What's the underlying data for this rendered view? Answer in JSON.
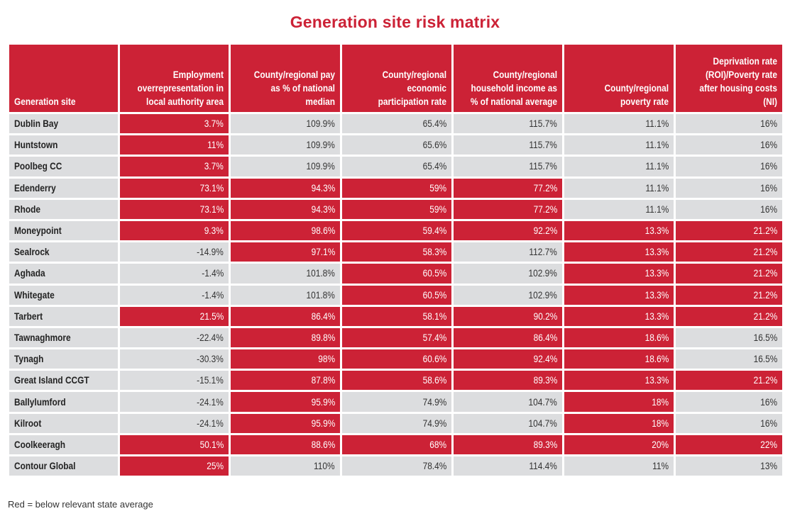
{
  "title": "Generation site risk matrix",
  "footnote": "Red = below relevant state average",
  "colors": {
    "red": "#cc2236",
    "gray": "#dcdddf",
    "white": "#ffffff"
  },
  "columns": [
    "Generation site",
    "Employment overrepresentation in local authority area",
    "County/regional pay as % of national median",
    "County/regional economic participation rate",
    "County/regional household income as % of national average",
    "County/regional poverty rate",
    "Deprivation rate (ROI)/Poverty rate after housing costs (NI)"
  ],
  "rows": [
    {
      "site": "Dublin Bay",
      "values": [
        "3.7%",
        "109.9%",
        "65.4%",
        "115.7%",
        "11.1%",
        "16%"
      ],
      "red": [
        true,
        false,
        false,
        false,
        false,
        false
      ]
    },
    {
      "site": "Huntstown",
      "values": [
        "11%",
        "109.9%",
        "65.6%",
        "115.7%",
        "11.1%",
        "16%"
      ],
      "red": [
        true,
        false,
        false,
        false,
        false,
        false
      ]
    },
    {
      "site": "Poolbeg CC",
      "values": [
        "3.7%",
        "109.9%",
        "65.4%",
        "115.7%",
        "11.1%",
        "16%"
      ],
      "red": [
        true,
        false,
        false,
        false,
        false,
        false
      ]
    },
    {
      "site": "Edenderry",
      "values": [
        "73.1%",
        "94.3%",
        "59%",
        "77.2%",
        "11.1%",
        "16%"
      ],
      "red": [
        true,
        true,
        true,
        true,
        false,
        false
      ]
    },
    {
      "site": "Rhode",
      "values": [
        "73.1%",
        "94.3%",
        "59%",
        "77.2%",
        "11.1%",
        "16%"
      ],
      "red": [
        true,
        true,
        true,
        true,
        false,
        false
      ]
    },
    {
      "site": "Moneypoint",
      "values": [
        "9.3%",
        "98.6%",
        "59.4%",
        "92.2%",
        "13.3%",
        "21.2%"
      ],
      "red": [
        true,
        true,
        true,
        true,
        true,
        true
      ]
    },
    {
      "site": "Sealrock",
      "values": [
        "-14.9%",
        "97.1%",
        "58.3%",
        "112.7%",
        "13.3%",
        "21.2%"
      ],
      "red": [
        false,
        true,
        true,
        false,
        true,
        true
      ]
    },
    {
      "site": "Aghada",
      "values": [
        "-1.4%",
        "101.8%",
        "60.5%",
        "102.9%",
        "13.3%",
        "21.2%"
      ],
      "red": [
        false,
        false,
        true,
        false,
        true,
        true
      ]
    },
    {
      "site": "Whitegate",
      "values": [
        "-1.4%",
        "101.8%",
        "60.5%",
        "102.9%",
        "13.3%",
        "21.2%"
      ],
      "red": [
        false,
        false,
        true,
        false,
        true,
        true
      ]
    },
    {
      "site": "Tarbert",
      "values": [
        "21.5%",
        "86.4%",
        "58.1%",
        "90.2%",
        "13.3%",
        "21.2%"
      ],
      "red": [
        true,
        true,
        true,
        true,
        true,
        true
      ]
    },
    {
      "site": "Tawnaghmore",
      "values": [
        "-22.4%",
        "89.8%",
        "57.4%",
        "86.4%",
        "18.6%",
        "16.5%"
      ],
      "red": [
        false,
        true,
        true,
        true,
        true,
        false
      ]
    },
    {
      "site": "Tynagh",
      "values": [
        "-30.3%",
        "98%",
        "60.6%",
        "92.4%",
        "18.6%",
        "16.5%"
      ],
      "red": [
        false,
        true,
        true,
        true,
        true,
        false
      ]
    },
    {
      "site": "Great Island CCGT",
      "values": [
        "-15.1%",
        "87.8%",
        "58.6%",
        "89.3%",
        "13.3%",
        "21.2%"
      ],
      "red": [
        false,
        true,
        true,
        true,
        true,
        true
      ]
    },
    {
      "site": "Ballylumford",
      "values": [
        "-24.1%",
        "95.9%",
        "74.9%",
        "104.7%",
        "18%",
        "16%"
      ],
      "red": [
        false,
        true,
        false,
        false,
        true,
        false
      ]
    },
    {
      "site": "Kilroot",
      "values": [
        "-24.1%",
        "95.9%",
        "74.9%",
        "104.7%",
        "18%",
        "16%"
      ],
      "red": [
        false,
        true,
        false,
        false,
        true,
        false
      ]
    },
    {
      "site": "Coolkeeragh",
      "values": [
        "50.1%",
        "88.6%",
        "68%",
        "89.3%",
        "20%",
        "22%"
      ],
      "red": [
        true,
        true,
        true,
        true,
        true,
        true
      ]
    },
    {
      "site": "Contour Global",
      "values": [
        "25%",
        "110%",
        "78.4%",
        "114.4%",
        "11%",
        "13%"
      ],
      "red": [
        true,
        false,
        false,
        false,
        false,
        false
      ]
    }
  ]
}
